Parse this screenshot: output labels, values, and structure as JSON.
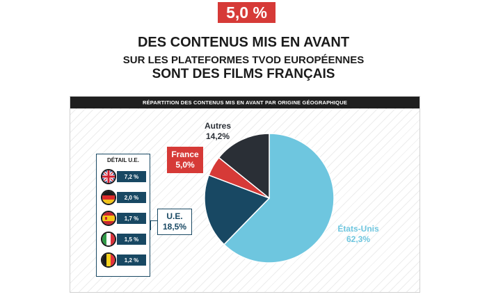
{
  "kpi": "5,0 %",
  "headline": {
    "line1": "DES CONTENUS MIS EN AVANT",
    "line2": "SUR LES PLATEFORMES TVOD EUROPÉENNES",
    "line3": "SONT DES FILMS FRANÇAIS"
  },
  "chart_data": {
    "type": "pie",
    "title": "RÉPARTITION DES CONTENUS MIS EN AVANT PAR ORIGINE GÉOGRAPHIQUE",
    "slices": [
      {
        "label": "États-Unis",
        "value_label": "62,3%",
        "value": 62.3,
        "color": "#6ec6df"
      },
      {
        "label": "U.E.",
        "value_label": "18,5%",
        "value": 18.5,
        "color": "#184863"
      },
      {
        "label": "France",
        "value_label": "5,0%",
        "value": 5.0,
        "color": "#d63a37"
      },
      {
        "label": "Autres",
        "value_label": "14,2%",
        "value": 14.2,
        "color": "#2a2f36"
      }
    ],
    "detail": {
      "title": "DÉTAIL U.E.",
      "items": [
        {
          "flag": "uk-flag-icon",
          "value_label": "7,2 %",
          "value": 7.2
        },
        {
          "flag": "germany-flag-icon",
          "value_label": "2,0 %",
          "value": 2.0
        },
        {
          "flag": "spain-flag-icon",
          "value_label": "1,7 %",
          "value": 1.7
        },
        {
          "flag": "italy-flag-icon",
          "value_label": "1,5 %",
          "value": 1.5
        },
        {
          "flag": "belgium-flag-icon",
          "value_label": "1,2 %",
          "value": 1.2
        }
      ]
    }
  }
}
